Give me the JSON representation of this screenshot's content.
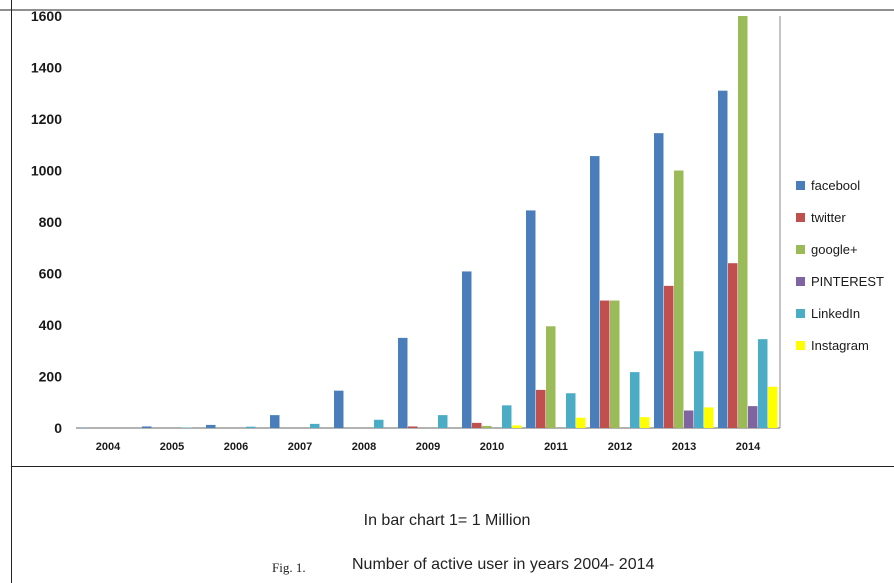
{
  "chart_data": {
    "type": "bar",
    "categories": [
      "2004",
      "2005",
      "2006",
      "2007",
      "2008",
      "2009",
      "2010",
      "2011",
      "2012",
      "2013",
      "2014"
    ],
    "ylim": [
      0,
      1600
    ],
    "yticks": [
      0,
      200,
      400,
      600,
      800,
      1000,
      1200,
      1400,
      1600
    ],
    "grid": false,
    "legend_position": "right",
    "series": [
      {
        "name": "faceboo​l",
        "color": "#4a7ebb",
        "values": [
          1,
          6,
          12,
          50,
          145,
          350,
          608,
          845,
          1056,
          1145,
          1310
        ]
      },
      {
        "name": "twitter",
        "color": "#c0504d",
        "values": [
          0,
          0,
          0,
          0,
          0,
          6,
          20,
          148,
          495,
          552,
          640
        ]
      },
      {
        "name": "google+",
        "color": "#9bbb59",
        "values": [
          0,
          0,
          0,
          0,
          0,
          0,
          8,
          395,
          495,
          1000,
          1620
        ]
      },
      {
        "name": "PINTEREST",
        "color": "#8064a2",
        "values": [
          0,
          0,
          0,
          0,
          0,
          0,
          0,
          0,
          0,
          68,
          85
        ]
      },
      {
        "name": "LinkedIn",
        "color": "#4bacc6",
        "values": [
          0,
          2,
          5,
          16,
          32,
          50,
          88,
          135,
          217,
          298,
          345
        ]
      },
      {
        "name": "Instagram",
        "color": "#ffff00",
        "values": [
          0,
          0,
          0,
          0,
          0,
          0,
          10,
          40,
          42,
          80,
          160
        ]
      }
    ]
  },
  "caption": {
    "note": "In bar chart 1= 1 Million",
    "fig_label": "Fig. 1.",
    "title": "Number of active user in years 2004- 2014"
  }
}
